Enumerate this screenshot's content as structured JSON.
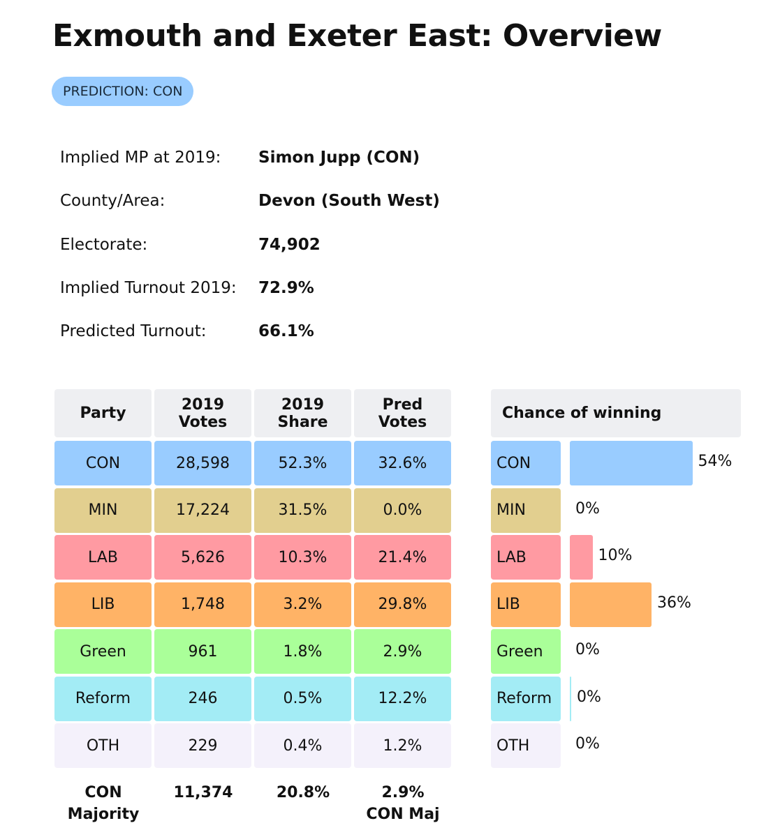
{
  "title": "Exmouth and Exeter East: Overview",
  "prediction_badge": "PREDICTION: CON",
  "info": [
    {
      "label": "Implied MP at 2019:",
      "value": "Simon Jupp  (CON)"
    },
    {
      "label": "County/Area:",
      "value": "Devon (South West)"
    },
    {
      "label": "Electorate:",
      "value": "74,902"
    },
    {
      "label": "Implied Turnout 2019:",
      "value": "72.9%"
    },
    {
      "label": "Predicted Turnout:",
      "value": "66.1%"
    }
  ],
  "table": {
    "headers": [
      "Party",
      "2019\nVotes",
      "2019\nShare",
      "Pred\nVotes"
    ],
    "rows": [
      {
        "party": "CON",
        "votes_2019": "28,598",
        "share_2019": "52.3%",
        "pred_votes": "32.6%",
        "color": "#99ccff"
      },
      {
        "party": "MIN",
        "votes_2019": "17,224",
        "share_2019": "31.5%",
        "pred_votes": "0.0%",
        "color": "#e2cf8f"
      },
      {
        "party": "LAB",
        "votes_2019": "5,626",
        "share_2019": "10.3%",
        "pred_votes": "21.4%",
        "color": "#ff9aa2"
      },
      {
        "party": "LIB",
        "votes_2019": "1,748",
        "share_2019": "3.2%",
        "pred_votes": "29.8%",
        "color": "#ffb366"
      },
      {
        "party": "Green",
        "votes_2019": "961",
        "share_2019": "1.8%",
        "pred_votes": "2.9%",
        "color": "#aaff99"
      },
      {
        "party": "Reform",
        "votes_2019": "246",
        "share_2019": "0.5%",
        "pred_votes": "12.2%",
        "color": "#a3ecf5"
      },
      {
        "party": "OTH",
        "votes_2019": "229",
        "share_2019": "0.4%",
        "pred_votes": "1.2%",
        "color": "#f4f1fb"
      }
    ],
    "footer": [
      "CON\nMajority",
      "11,374",
      "20.8%",
      "2.9%\nCON Maj"
    ]
  },
  "chance": {
    "header": "Chance of winning",
    "rows": [
      {
        "party": "CON",
        "percent": 54,
        "label": "54%",
        "color": "#99ccff"
      },
      {
        "party": "MIN",
        "percent": 0,
        "label": "0%",
        "color": "#e2cf8f"
      },
      {
        "party": "LAB",
        "percent": 10,
        "label": "10%",
        "color": "#ff9aa2"
      },
      {
        "party": "LIB",
        "percent": 36,
        "label": "36%",
        "color": "#ffb366"
      },
      {
        "party": "Green",
        "percent": 0,
        "label": "0%",
        "color": "#aaff99"
      },
      {
        "party": "Reform",
        "percent": 0.3,
        "label": "0%",
        "color": "#a3ecf5"
      },
      {
        "party": "OTH",
        "percent": 0,
        "label": "0%",
        "color": "#f4f1fb"
      }
    ]
  }
}
